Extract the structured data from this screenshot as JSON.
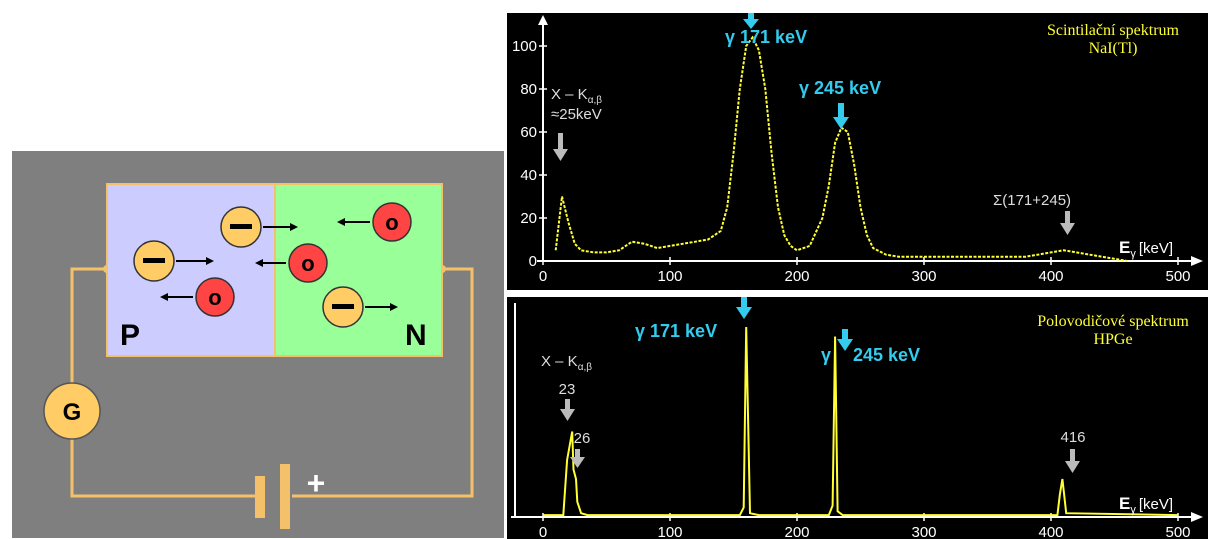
{
  "circuit": {
    "region_p": "P",
    "region_n": "N",
    "galvanometer": "G",
    "battery_sign": "+",
    "electron_symbol": "−",
    "hole_symbol": "o",
    "colors": {
      "background": "#7f7f7f",
      "p_region": "#ccccff",
      "n_region": "#99ff99",
      "wire": "#f5c06a",
      "electron": "#ffcc66",
      "hole": "#ff4444"
    }
  },
  "spectra": [
    {
      "title_line1": "Scintilační spektrum",
      "title_line2": "NaI(Tl)",
      "y_ticks": [
        "0",
        "20",
        "40",
        "60",
        "80",
        "100"
      ],
      "x_ticks": [
        "0",
        "100",
        "200",
        "300",
        "400",
        "500"
      ],
      "axis_label_e": "E",
      "axis_label_sub": "γ",
      "axis_label_unit": "[keV]",
      "annot_xk_line1": "X – K",
      "annot_xk_sub": "α,β",
      "annot_xk_line2": "≈25keV",
      "peak_label_1": "γ 171 keV",
      "peak_label_2": "γ 245 keV",
      "sum_label": "Σ(171+245)"
    },
    {
      "title_line1": "Polovodičové spektrum",
      "title_line2": "HPGe",
      "x_ticks": [
        "0",
        "100",
        "200",
        "300",
        "400",
        "500"
      ],
      "axis_label_e": "E",
      "axis_label_sub": "γ",
      "axis_label_unit": "[keV]",
      "annot_xk_line1": "X – K",
      "annot_xk_sub": "α,β",
      "annot_23": "23",
      "annot_26": "26",
      "annot_416": "416",
      "peak_label_1": "γ 171 keV",
      "peak_label_2a": "γ",
      "peak_label_2b": "245 keV"
    }
  ],
  "chart_data": [
    {
      "type": "line",
      "title": "Scintilační spektrum NaI(Tl)",
      "xlabel": "Eγ [keV]",
      "ylabel": "",
      "xlim": [
        0,
        500
      ],
      "ylim": [
        0,
        110
      ],
      "grid": false,
      "x": [
        10,
        15,
        20,
        25,
        30,
        40,
        50,
        60,
        70,
        80,
        90,
        100,
        110,
        120,
        130,
        140,
        145,
        150,
        155,
        160,
        165,
        170,
        175,
        180,
        185,
        190,
        195,
        200,
        210,
        220,
        225,
        230,
        235,
        240,
        245,
        250,
        255,
        260,
        270,
        280,
        290,
        300,
        320,
        340,
        360,
        380,
        390,
        400,
        410,
        420,
        430,
        440,
        450,
        460
      ],
      "values": [
        5,
        30,
        18,
        8,
        5,
        4,
        4,
        5,
        9,
        8,
        6,
        7,
        8,
        9,
        10,
        14,
        25,
        50,
        80,
        100,
        104,
        98,
        80,
        50,
        25,
        12,
        7,
        5,
        7,
        20,
        35,
        55,
        62,
        60,
        45,
        25,
        12,
        6,
        3,
        2,
        2,
        2,
        2,
        2,
        2,
        2,
        3,
        4,
        5,
        4,
        3,
        2,
        1,
        0
      ]
    },
    {
      "type": "line",
      "title": "Polovodičové spektrum HPGe",
      "xlabel": "Eγ [keV]",
      "ylabel": "",
      "xlim": [
        0,
        500
      ],
      "ylim": [
        0,
        110
      ],
      "grid": false,
      "x": [
        0,
        16,
        19,
        23,
        24,
        26,
        27,
        30,
        35,
        90,
        155,
        158,
        160,
        163,
        170,
        225,
        228,
        230,
        232,
        236,
        300,
        405,
        407,
        409,
        412,
        500
      ],
      "values": [
        1,
        1,
        30,
        45,
        25,
        20,
        8,
        2,
        1,
        1,
        1,
        5,
        100,
        2,
        1,
        1,
        6,
        95,
        3,
        1,
        1,
        1,
        12,
        20,
        2,
        1
      ]
    }
  ]
}
